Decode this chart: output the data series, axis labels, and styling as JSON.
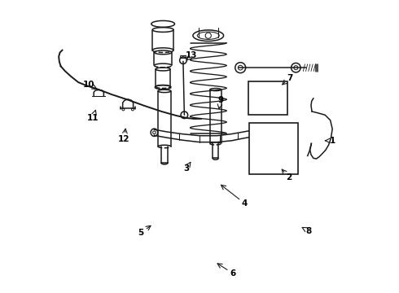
{
  "bg_color": "#ffffff",
  "line_color": "#1a1a1a",
  "label_color": "#000000",
  "fig_width": 4.9,
  "fig_height": 3.6,
  "dpi": 100,
  "labels_data": {
    "1": [
      0.955,
      0.52,
      0.92,
      0.52
    ],
    "2": [
      0.805,
      0.395,
      0.775,
      0.43
    ],
    "3": [
      0.455,
      0.425,
      0.475,
      0.455
    ],
    "4": [
      0.655,
      0.305,
      0.565,
      0.375
    ],
    "5": [
      0.3,
      0.205,
      0.342,
      0.235
    ],
    "6": [
      0.615,
      0.065,
      0.552,
      0.105
    ],
    "7": [
      0.81,
      0.735,
      0.775,
      0.705
    ],
    "8": [
      0.875,
      0.21,
      0.842,
      0.228
    ],
    "9": [
      0.572,
      0.658,
      0.565,
      0.618
    ],
    "10": [
      0.12,
      0.712,
      0.158,
      0.692
    ],
    "11": [
      0.135,
      0.598,
      0.148,
      0.635
    ],
    "12": [
      0.242,
      0.525,
      0.248,
      0.572
    ],
    "13": [
      0.472,
      0.812,
      0.45,
      0.788
    ]
  }
}
